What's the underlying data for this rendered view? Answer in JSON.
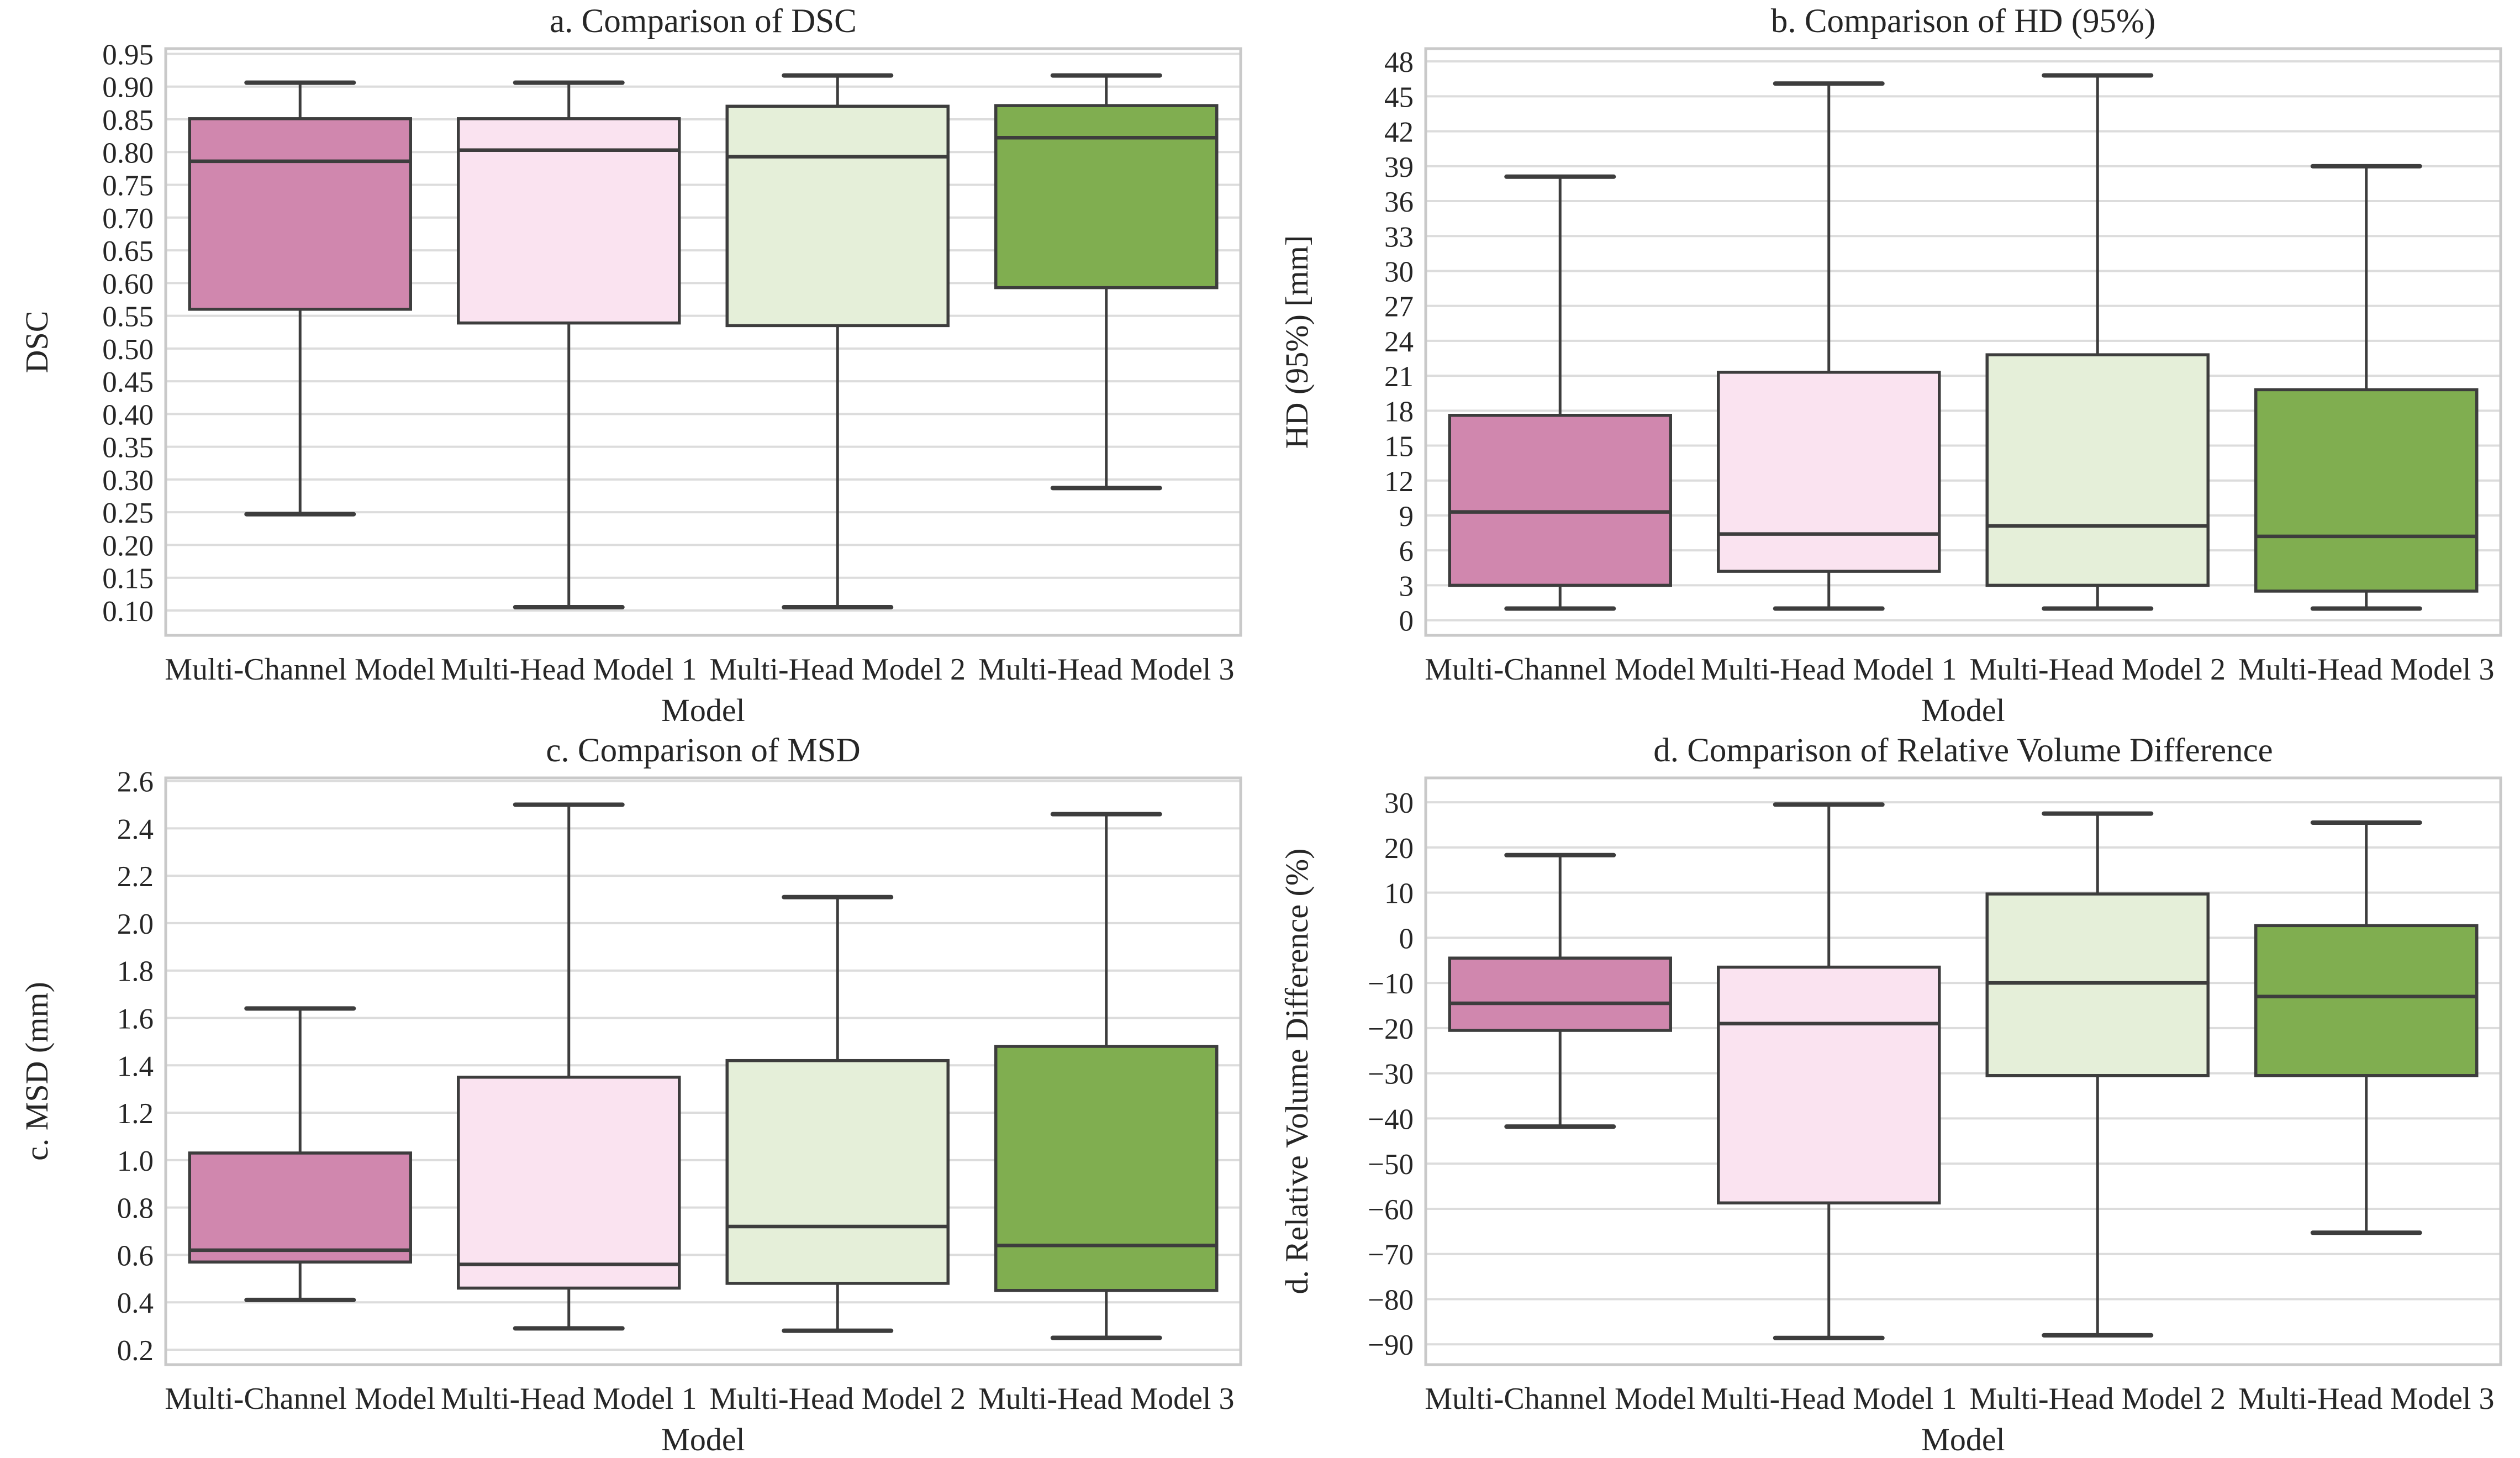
{
  "style": {
    "background": "#ffffff",
    "grid_color": "#dcdcdc",
    "spine_color": "#c9c9c9",
    "box_edge_color": "#3d3d3d",
    "text_color": "#262626"
  },
  "xlabel": "Model",
  "model_colors": {
    "Multi-Channel Model": "#d087ae",
    "Multi-Head Model 1": "#fae3f0",
    "Multi-Head Model 2": "#e5efd9",
    "Multi-Head Model 3": "#80ae50"
  },
  "chart_data": [
    {
      "type": "box",
      "title": "a. Comparison of DSC",
      "ylabel": "DSC",
      "xlabel": "Model",
      "grid": true,
      "legend": false,
      "categories": [
        "Multi-Channel Model",
        "Multi-Head Model 1",
        "Multi-Head Model 2",
        "Multi-Head Model 3"
      ],
      "ylim": [
        0.062,
        0.958
      ],
      "yticks": {
        "values": [
          0.1,
          0.15,
          0.2,
          0.25,
          0.3,
          0.35,
          0.4,
          0.45,
          0.5,
          0.55,
          0.6,
          0.65,
          0.7,
          0.75,
          0.8,
          0.85,
          0.9,
          0.95
        ],
        "labels": [
          "0.10",
          "0.15",
          "0.20",
          "0.25",
          "0.30",
          "0.35",
          "0.40",
          "0.45",
          "0.50",
          "0.55",
          "0.60",
          "0.65",
          "0.70",
          "0.75",
          "0.80",
          "0.85",
          "0.90",
          "0.95"
        ]
      },
      "boxes": [
        {
          "label": "Multi-Channel Model",
          "color": "#d087ae",
          "whislo": 0.247,
          "q1": 0.56,
          "med": 0.786,
          "q3": 0.851,
          "whishi": 0.906
        },
        {
          "label": "Multi-Head Model 1",
          "color": "#fae3f0",
          "whislo": 0.105,
          "q1": 0.539,
          "med": 0.803,
          "q3": 0.851,
          "whishi": 0.906
        },
        {
          "label": "Multi-Head Model 2",
          "color": "#e5efd9",
          "whislo": 0.105,
          "q1": 0.535,
          "med": 0.793,
          "q3": 0.87,
          "whishi": 0.917
        },
        {
          "label": "Multi-Head Model 3",
          "color": "#80ae50",
          "whislo": 0.287,
          "q1": 0.593,
          "med": 0.822,
          "q3": 0.871,
          "whishi": 0.917
        }
      ]
    },
    {
      "type": "box",
      "title": "b. Comparison of HD (95%)",
      "ylabel": "HD (95%) [mm]",
      "xlabel": "Model",
      "grid": true,
      "legend": false,
      "categories": [
        "Multi-Channel Model",
        "Multi-Head Model 1",
        "Multi-Head Model 2",
        "Multi-Head Model 3"
      ],
      "ylim": [
        -1.3,
        49.1
      ],
      "yticks": {
        "values": [
          0,
          3,
          6,
          9,
          12,
          15,
          18,
          21,
          24,
          27,
          30,
          33,
          36,
          39,
          42,
          45,
          48
        ],
        "labels": [
          "0",
          "3",
          "6",
          "9",
          "12",
          "15",
          "18",
          "21",
          "24",
          "27",
          "30",
          "33",
          "36",
          "39",
          "42",
          "45",
          "48"
        ]
      },
      "boxes": [
        {
          "label": "Multi-Channel Model",
          "color": "#d087ae",
          "whislo": 1.0,
          "q1": 3.0,
          "med": 9.3,
          "q3": 17.6,
          "whishi": 38.1
        },
        {
          "label": "Multi-Head Model 1",
          "color": "#fae3f0",
          "whislo": 1.0,
          "q1": 4.2,
          "med": 7.4,
          "q3": 21.3,
          "whishi": 46.1
        },
        {
          "label": "Multi-Head Model 2",
          "color": "#e5efd9",
          "whislo": 1.0,
          "q1": 3.0,
          "med": 8.1,
          "q3": 22.8,
          "whishi": 46.8
        },
        {
          "label": "Multi-Head Model 3",
          "color": "#80ae50",
          "whislo": 1.0,
          "q1": 2.5,
          "med": 7.2,
          "q3": 19.8,
          "whishi": 39.0
        }
      ]
    },
    {
      "type": "box",
      "title": "c. Comparison of MSD",
      "ylabel": "c. MSD (mm)",
      "xlabel": "Model",
      "grid": true,
      "legend": false,
      "categories": [
        "Multi-Channel Model",
        "Multi-Head Model 1",
        "Multi-Head Model 2",
        "Multi-Head Model 3"
      ],
      "ylim": [
        0.137,
        2.613
      ],
      "yticks": {
        "values": [
          0.2,
          0.4,
          0.6,
          0.8,
          1.0,
          1.2,
          1.4,
          1.6,
          1.8,
          2.0,
          2.2,
          2.4,
          2.6
        ],
        "labels": [
          "0.2",
          "0.4",
          "0.6",
          "0.8",
          "1.0",
          "1.2",
          "1.4",
          "1.6",
          "1.8",
          "2.0",
          "2.2",
          "2.4",
          "2.6"
        ]
      },
      "boxes": [
        {
          "label": "Multi-Channel Model",
          "color": "#d087ae",
          "whislo": 0.41,
          "q1": 0.57,
          "med": 0.62,
          "q3": 1.03,
          "whishi": 1.64
        },
        {
          "label": "Multi-Head Model 1",
          "color": "#fae3f0",
          "whislo": 0.29,
          "q1": 0.46,
          "med": 0.56,
          "q3": 1.35,
          "whishi": 2.5
        },
        {
          "label": "Multi-Head Model 2",
          "color": "#e5efd9",
          "whislo": 0.28,
          "q1": 0.48,
          "med": 0.72,
          "q3": 1.42,
          "whishi": 2.11
        },
        {
          "label": "Multi-Head Model 3",
          "color": "#80ae50",
          "whislo": 0.25,
          "q1": 0.45,
          "med": 0.64,
          "q3": 1.48,
          "whishi": 2.46
        }
      ]
    },
    {
      "type": "box",
      "title": "d. Comparison of Relative Volume Difference",
      "ylabel": "d. Relative Volume Difference  (%)",
      "xlabel": "Model",
      "grid": true,
      "legend": false,
      "categories": [
        "Multi-Channel Model",
        "Multi-Head Model 1",
        "Multi-Head Model 2",
        "Multi-Head Model 3"
      ],
      "ylim": [
        -94.5,
        35.4
      ],
      "yticks": {
        "values": [
          -90,
          -80,
          -70,
          -60,
          -50,
          -40,
          -30,
          -20,
          -10,
          0,
          10,
          20,
          30
        ],
        "labels": [
          "−90",
          "−80",
          "−70",
          "−60",
          "−50",
          "−40",
          "−30",
          "−20",
          "−10",
          "0",
          "10",
          "20",
          "30"
        ]
      },
      "boxes": [
        {
          "label": "Multi-Channel Model",
          "color": "#d087ae",
          "whislo": -41.8,
          "q1": -20.5,
          "med": -14.5,
          "q3": -4.5,
          "whishi": 18.3
        },
        {
          "label": "Multi-Head Model 1",
          "color": "#fae3f0",
          "whislo": -88.6,
          "q1": -58.7,
          "med": -19.0,
          "q3": -6.5,
          "whishi": 29.5
        },
        {
          "label": "Multi-Head Model 2",
          "color": "#e5efd9",
          "whislo": -88.0,
          "q1": -30.5,
          "med": -10.0,
          "q3": 9.7,
          "whishi": 27.5
        },
        {
          "label": "Multi-Head Model 3",
          "color": "#80ae50",
          "whislo": -65.3,
          "q1": -30.5,
          "med": -13.0,
          "q3": 2.7,
          "whishi": 25.5
        }
      ]
    }
  ]
}
